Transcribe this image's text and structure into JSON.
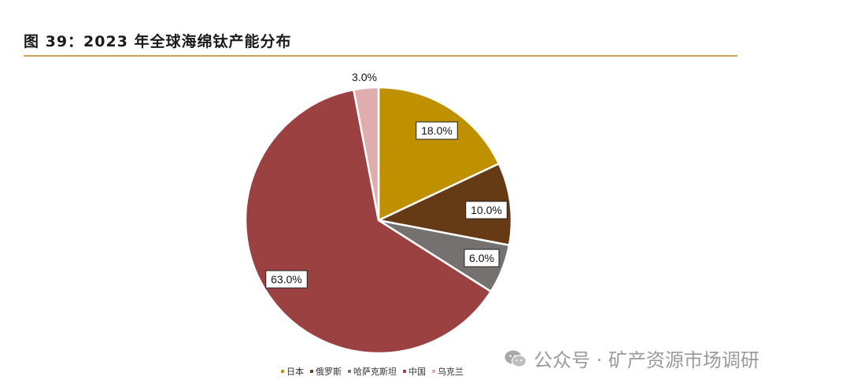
{
  "title": "图 39：2023 年全球海绵钛产能分布",
  "watermark": {
    "text": "公众号 · 矿产资源市场调研",
    "icon": "wechat-icon"
  },
  "colors": {
    "title_rule": "#c8a45a",
    "label_border": "#222222"
  },
  "chart_data": {
    "type": "pie",
    "title": "",
    "start_angle_deg": 0,
    "direction": "clockwise",
    "slices": [
      {
        "name": "日本",
        "value": 18.0,
        "label": "18.0%",
        "color": "#bf9000"
      },
      {
        "name": "俄罗斯",
        "value": 10.0,
        "label": "10.0%",
        "color": "#673a16"
      },
      {
        "name": "哈萨克斯坦",
        "value": 6.0,
        "label": "6.0%",
        "color": "#767171"
      },
      {
        "name": "中国",
        "value": 63.0,
        "label": "63.0%",
        "color": "#9b4141"
      },
      {
        "name": "乌克兰",
        "value": 3.0,
        "label": "3.0%",
        "color": "#dfadad"
      }
    ],
    "legend_position": "bottom"
  }
}
